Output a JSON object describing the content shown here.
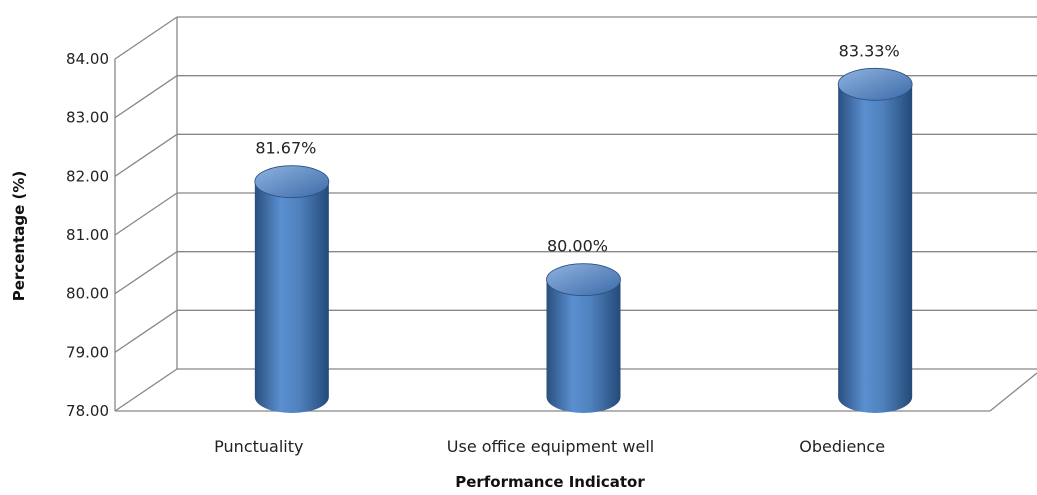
{
  "chart_data": {
    "type": "bar",
    "style": "3d-cylinder",
    "categories": [
      "Punctuality",
      "Use office equipment well",
      "Obedience"
    ],
    "values": [
      81.67,
      80.0,
      83.33
    ],
    "data_labels": [
      "81.67%",
      "80.00%",
      "83.33%"
    ],
    "xlabel": "Performance Indicator",
    "ylabel": "Percentage (%)",
    "ylim": [
      78,
      84
    ],
    "y_ticks": [
      "78.00",
      "79.00",
      "80.00",
      "81.00",
      "82.00",
      "83.00",
      "84.00"
    ],
    "grid": true,
    "legend": "none",
    "colors": {
      "bar": "#4f81bd",
      "bar_dark": "#2a4f7f",
      "bar_light": "#8fb3e0",
      "grid": "#888888"
    }
  }
}
